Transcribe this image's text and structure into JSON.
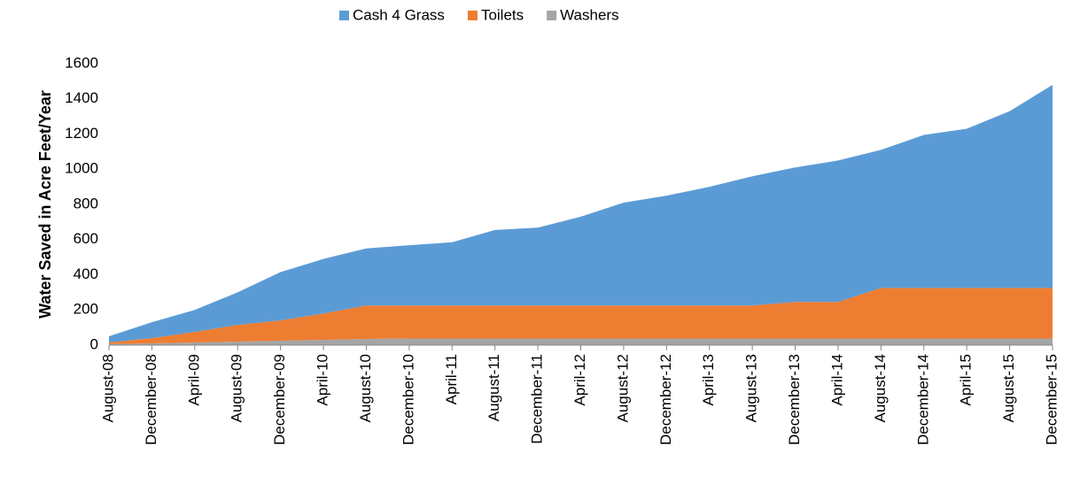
{
  "chart_data": {
    "type": "stacked_area",
    "y_label": "Water Saved in Acre Feet/Year",
    "categories": [
      "August-08",
      "December-08",
      "April-09",
      "August-09",
      "December-09",
      "April-10",
      "August-10",
      "December-10",
      "April-11",
      "August-11",
      "December-11",
      "April-12",
      "August-12",
      "December-12",
      "April-13",
      "August-13",
      "December-13",
      "April-14",
      "August-14",
      "December-14",
      "April-15",
      "August-15",
      "December-15"
    ],
    "series": [
      {
        "name": "Cash 4 Grass",
        "color": "#5b9bd5",
        "values": [
          35,
          90,
          125,
          185,
          275,
          310,
          325,
          343,
          360,
          430,
          443,
          505,
          585,
          625,
          675,
          735,
          765,
          805,
          785,
          870,
          905,
          1005,
          1155
        ]
      },
      {
        "name": "Toilets",
        "color": "#ed7d31",
        "values": [
          10,
          30,
          60,
          95,
          115,
          150,
          190,
          187,
          187,
          187,
          187,
          187,
          187,
          187,
          187,
          187,
          207,
          207,
          287,
          287,
          287,
          287,
          287
        ]
      },
      {
        "name": "Washers",
        "color": "#a5a5a5",
        "values": [
          5,
          10,
          15,
          20,
          25,
          30,
          35,
          38,
          38,
          38,
          38,
          38,
          38,
          38,
          38,
          38,
          38,
          38,
          38,
          38,
          38,
          38,
          38
        ]
      }
    ],
    "ylim": [
      0,
      1600
    ],
    "yticks": [
      0,
      200,
      400,
      600,
      800,
      1000,
      1200,
      1400,
      1600
    ],
    "grid": false,
    "legend": "top"
  }
}
